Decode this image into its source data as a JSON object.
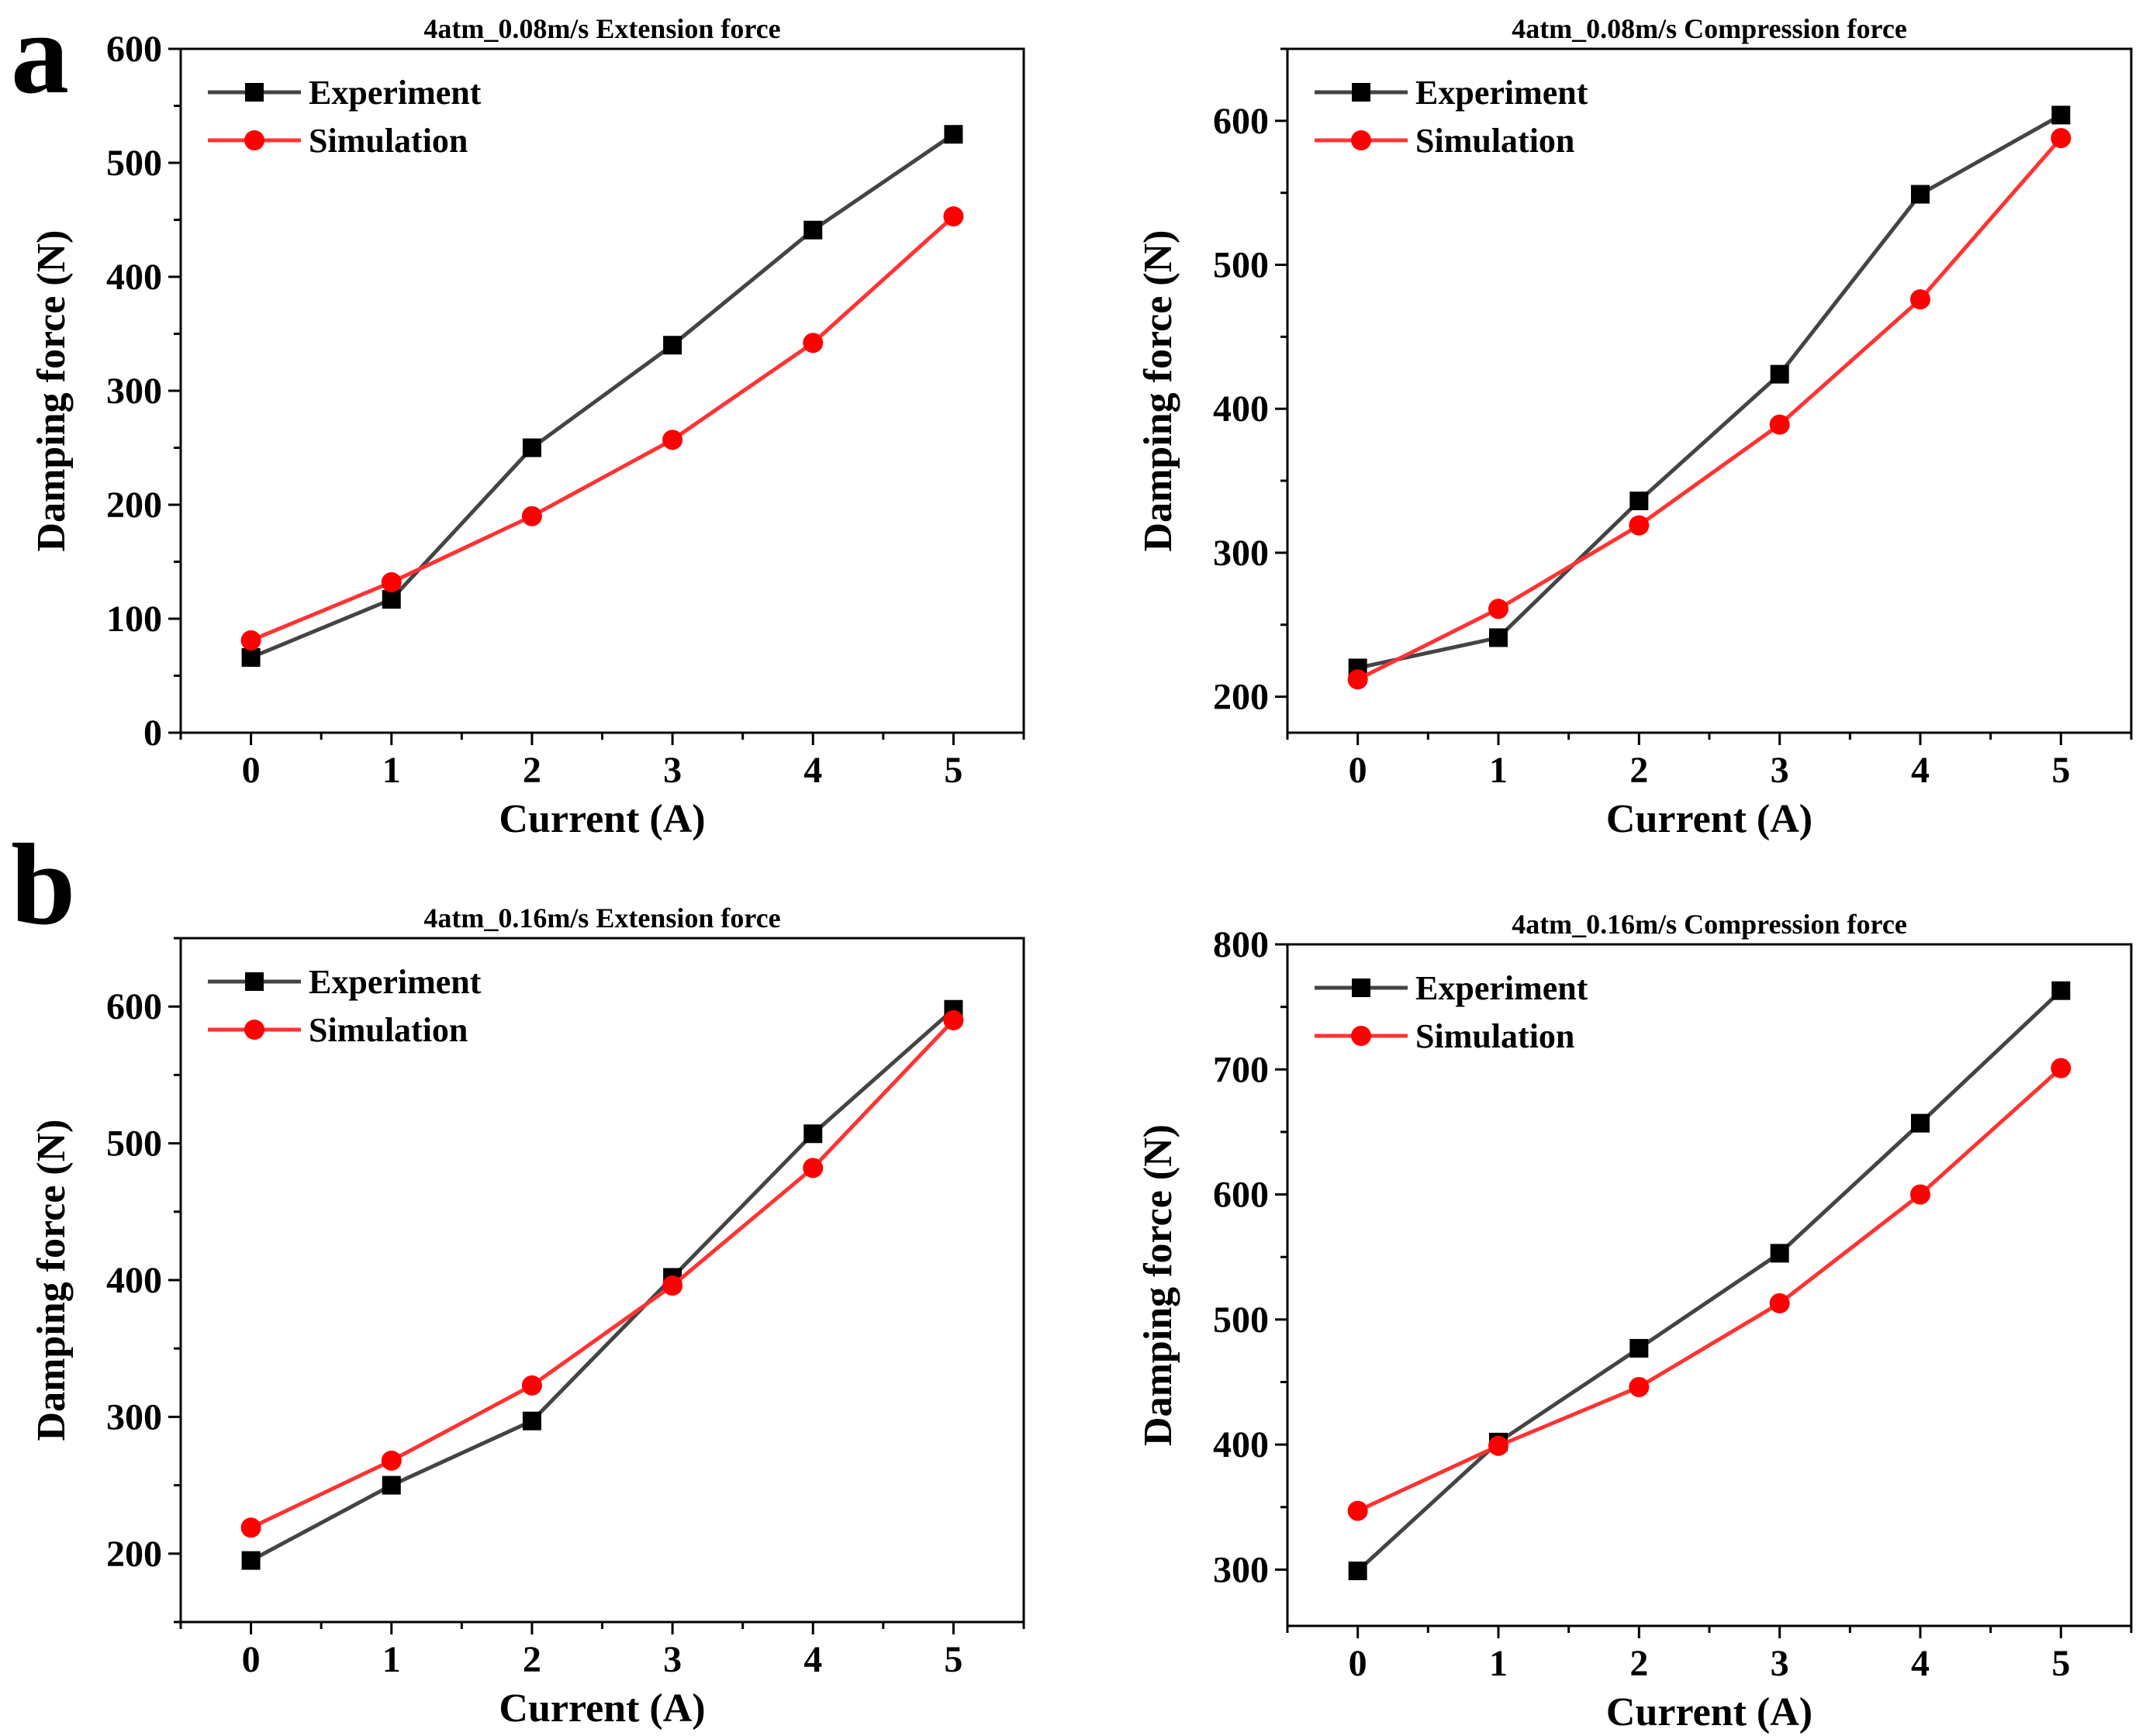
{
  "figure": {
    "panel_labels": [
      "a",
      "b"
    ]
  },
  "chart_data": [
    {
      "type": "line",
      "title": "4atm_0.08m/s Extension force",
      "xlabel": "Current (A)",
      "ylabel": "Damping force (N)",
      "x": [
        0,
        1,
        2,
        3,
        4,
        5
      ],
      "xlim": [
        -0.5,
        5.5
      ],
      "ylim": [
        0,
        600
      ],
      "yticks": [
        0,
        100,
        200,
        300,
        400,
        500,
        600
      ],
      "legend_position": "top-left",
      "series": [
        {
          "name": "Experiment",
          "marker": "square",
          "color": "#444444",
          "marker_color": "#000000",
          "values": [
            66,
            117,
            250,
            340,
            441,
            525
          ]
        },
        {
          "name": "Simulation",
          "marker": "circle",
          "color": "#ff3333",
          "marker_color": "#ff0000",
          "values": [
            81,
            132,
            190,
            257,
            342,
            453
          ]
        }
      ]
    },
    {
      "type": "line",
      "title": "4atm_0.08m/s Compression force",
      "xlabel": "Current (A)",
      "ylabel": "Damping force (N)",
      "x": [
        0,
        1,
        2,
        3,
        4,
        5
      ],
      "xlim": [
        -0.5,
        5.5
      ],
      "ylim": [
        175,
        650
      ],
      "yticks": [
        200,
        300,
        400,
        500,
        600
      ],
      "legend_position": "top-left",
      "series": [
        {
          "name": "Experiment",
          "marker": "square",
          "color": "#444444",
          "marker_color": "#000000",
          "values": [
            220,
            241,
            336,
            424,
            549,
            604
          ]
        },
        {
          "name": "Simulation",
          "marker": "circle",
          "color": "#ff3333",
          "marker_color": "#ff0000",
          "values": [
            212,
            261,
            319,
            389,
            476,
            588
          ]
        }
      ]
    },
    {
      "type": "line",
      "title": "4atm_0.16m/s Extension force",
      "xlabel": "Current (A)",
      "ylabel": "Damping force (N)",
      "x": [
        0,
        1,
        2,
        3,
        4,
        5
      ],
      "xlim": [
        -0.5,
        5.5
      ],
      "ylim": [
        150,
        650
      ],
      "yticks": [
        200,
        300,
        400,
        500,
        600
      ],
      "legend_position": "top-left",
      "series": [
        {
          "name": "Experiment",
          "marker": "square",
          "color": "#444444",
          "marker_color": "#000000",
          "values": [
            195,
            250,
            297,
            402,
            507,
            598
          ]
        },
        {
          "name": "Simulation",
          "marker": "circle",
          "color": "#ff3333",
          "marker_color": "#ff0000",
          "values": [
            219,
            268,
            323,
            396,
            482,
            590
          ]
        }
      ]
    },
    {
      "type": "line",
      "title": "4atm_0.16m/s Compression force",
      "xlabel": "Current (A)",
      "ylabel": "Damping force (N)",
      "x": [
        0,
        1,
        2,
        3,
        4,
        5
      ],
      "xlim": [
        -0.5,
        5.5
      ],
      "ylim": [
        255,
        800
      ],
      "yticks": [
        300,
        400,
        500,
        600,
        700,
        800
      ],
      "legend_position": "top-left",
      "series": [
        {
          "name": "Experiment",
          "marker": "square",
          "color": "#444444",
          "marker_color": "#000000",
          "values": [
            299,
            402,
            477,
            553,
            657,
            763
          ]
        },
        {
          "name": "Simulation",
          "marker": "circle",
          "color": "#ff3333",
          "marker_color": "#ff0000",
          "values": [
            347,
            399,
            446,
            513,
            600,
            701
          ]
        }
      ]
    }
  ]
}
